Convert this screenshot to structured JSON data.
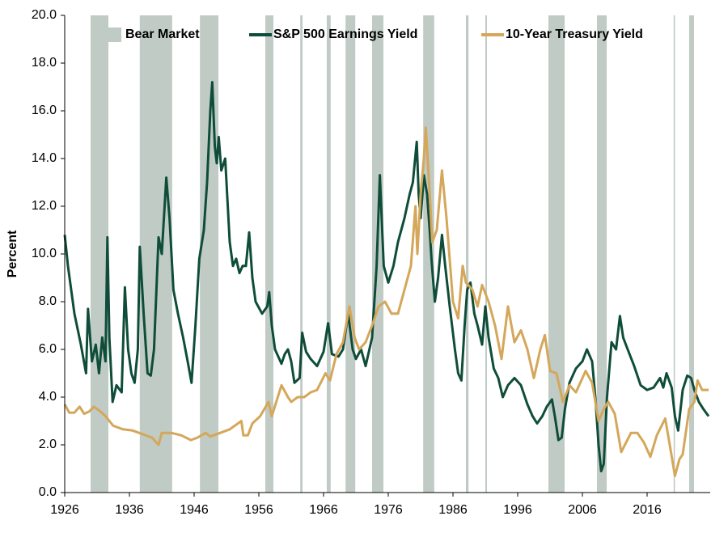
{
  "chart_data": {
    "type": "line",
    "y_label": "Percent",
    "xlim": [
      1926,
      2025.75
    ],
    "xticks": [
      1926,
      1936,
      1946,
      1956,
      1966,
      1976,
      1986,
      1996,
      2006,
      2016
    ],
    "ylim": [
      0,
      20
    ],
    "yticks": [
      {
        "value": 0,
        "label": "0.0"
      },
      {
        "value": 2,
        "label": "2.0"
      },
      {
        "value": 4,
        "label": "4.0"
      },
      {
        "value": 6,
        "label": "6.0"
      },
      {
        "value": 8,
        "label": "8.0"
      },
      {
        "value": 10,
        "label": "10.0"
      },
      {
        "value": 12,
        "label": "12.0"
      },
      {
        "value": 14,
        "label": "14.0"
      },
      {
        "value": 16,
        "label": "16.0"
      },
      {
        "value": 18,
        "label": "18.0"
      },
      {
        "value": 20,
        "label": "20.0"
      }
    ],
    "legend": "top",
    "shaded_periods": {
      "name": "Bear Market",
      "color": "#bfcbc4",
      "ranges": [
        [
          1930.0,
          1932.75
        ],
        [
          1937.6,
          1942.6
        ],
        [
          1946.9,
          1949.75
        ],
        [
          1957.0,
          1958.25
        ],
        [
          1962.4,
          1962.75
        ],
        [
          1966.5,
          1967.1
        ],
        [
          1969.4,
          1970.9
        ],
        [
          1973.5,
          1975.25
        ],
        [
          1981.4,
          1983.1
        ],
        [
          1988.0,
          1988.4
        ],
        [
          1991.0,
          1991.25
        ],
        [
          2000.75,
          2003.25
        ],
        [
          2008.25,
          2009.75
        ],
        [
          2020.1,
          2020.3
        ],
        [
          2022.5,
          2023.25
        ]
      ]
    },
    "series": [
      {
        "name": "S&P 500 Earnings Yield",
        "color": "#0f4d3a",
        "x": [
          1926.0,
          1926.5,
          1927.5,
          1928.5,
          1929.3,
          1929.6,
          1930.2,
          1930.8,
          1931.3,
          1931.8,
          1932.3,
          1932.6,
          1932.9,
          1933.4,
          1934.0,
          1934.8,
          1935.3,
          1935.8,
          1936.3,
          1936.8,
          1937.3,
          1937.6,
          1938.2,
          1938.8,
          1939.3,
          1939.8,
          1940.5,
          1941.0,
          1941.7,
          1942.2,
          1942.8,
          1943.5,
          1944.3,
          1945.0,
          1945.6,
          1946.2,
          1946.8,
          1947.5,
          1948.0,
          1948.5,
          1948.8,
          1949.2,
          1949.5,
          1949.8,
          1950.2,
          1950.8,
          1951.5,
          1952.0,
          1952.5,
          1953.0,
          1953.5,
          1954.0,
          1954.5,
          1955.0,
          1955.5,
          1956.5,
          1957.3,
          1957.6,
          1958.0,
          1958.5,
          1959.0,
          1959.5,
          1960.0,
          1960.5,
          1961.0,
          1961.5,
          1962.3,
          1962.7,
          1963.3,
          1964.0,
          1965.0,
          1966.0,
          1966.7,
          1967.3,
          1968.3,
          1969.0,
          1969.8,
          1970.5,
          1971.0,
          1971.8,
          1972.5,
          1973.5,
          1974.2,
          1974.7,
          1975.3,
          1976.0,
          1976.8,
          1977.5,
          1978.5,
          1979.3,
          1979.8,
          1980.4,
          1980.7,
          1981.0,
          1981.5,
          1982.0,
          1982.4,
          1982.7,
          1983.2,
          1983.7,
          1984.3,
          1984.8,
          1985.5,
          1986.3,
          1986.8,
          1987.3,
          1987.8,
          1988.2,
          1988.7,
          1989.3,
          1989.8,
          1990.5,
          1991.0,
          1991.5,
          1992.3,
          1993.0,
          1993.7,
          1994.5,
          1995.5,
          1996.5,
          1997.5,
          1998.3,
          1999.0,
          1999.8,
          2000.5,
          2001.3,
          2001.8,
          2002.3,
          2002.8,
          2003.3,
          2004.0,
          2005.0,
          2006.0,
          2006.7,
          2007.5,
          2008.0,
          2008.5,
          2008.9,
          2009.3,
          2009.8,
          2010.5,
          2011.2,
          2011.8,
          2012.3,
          2013.0,
          2014.0,
          2015.0,
          2016.0,
          2017.0,
          2018.0,
          2018.5,
          2019.0,
          2019.8,
          2020.3,
          2020.8,
          2021.5,
          2022.2,
          2022.8,
          2023.3,
          2024.0,
          2024.7,
          2025.5
        ],
        "values": [
          10.8,
          9.5,
          7.5,
          6.2,
          5.0,
          7.7,
          5.5,
          6.2,
          5.0,
          6.5,
          5.5,
          10.7,
          6.5,
          3.8,
          4.5,
          4.2,
          8.6,
          6.0,
          5.0,
          4.6,
          6.0,
          10.3,
          7.5,
          5.0,
          4.9,
          6.0,
          10.7,
          10.0,
          13.2,
          11.5,
          8.5,
          7.5,
          6.5,
          5.5,
          4.6,
          7.0,
          9.8,
          11.0,
          13.0,
          16.0,
          17.2,
          14.5,
          13.8,
          14.9,
          13.5,
          14.0,
          10.5,
          9.5,
          9.8,
          9.2,
          9.5,
          9.5,
          10.9,
          9.0,
          8.0,
          7.5,
          7.8,
          8.4,
          7.0,
          6.0,
          5.7,
          5.4,
          5.8,
          6.0,
          5.5,
          4.6,
          4.8,
          6.7,
          5.9,
          5.6,
          5.3,
          5.9,
          7.1,
          5.8,
          5.7,
          6.0,
          7.5,
          6.0,
          5.6,
          6.0,
          5.3,
          6.5,
          9.5,
          13.3,
          9.5,
          8.8,
          9.5,
          10.5,
          11.5,
          12.5,
          13.0,
          14.7,
          12.5,
          11.5,
          13.3,
          12.5,
          11.0,
          9.7,
          8.0,
          9.0,
          10.8,
          9.5,
          7.8,
          6.0,
          5.0,
          4.7,
          7.0,
          8.5,
          8.8,
          7.5,
          7.0,
          6.2,
          7.8,
          6.5,
          5.2,
          4.8,
          4.0,
          4.5,
          4.8,
          4.5,
          3.7,
          3.2,
          2.9,
          3.2,
          3.6,
          3.9,
          3.1,
          2.2,
          2.3,
          3.5,
          4.6,
          5.2,
          5.5,
          6.0,
          5.5,
          4.0,
          2.0,
          0.9,
          1.2,
          4.0,
          6.3,
          6.0,
          7.4,
          6.5,
          6.0,
          5.3,
          4.5,
          4.3,
          4.4,
          4.8,
          4.4,
          5.0,
          4.4,
          3.2,
          2.6,
          4.3,
          4.9,
          4.8,
          4.3,
          3.8,
          3.5,
          3.2
        ]
      },
      {
        "name": "10-Year Treasury Yield",
        "color": "#d4a75a",
        "x": [
          1926.0,
          1926.7,
          1927.5,
          1928.3,
          1929.0,
          1929.8,
          1930.5,
          1931.5,
          1932.3,
          1933.5,
          1935.0,
          1936.5,
          1938.0,
          1939.5,
          1940.5,
          1941.0,
          1942.5,
          1944.0,
          1945.5,
          1946.5,
          1947.8,
          1948.5,
          1950.0,
          1951.5,
          1953.3,
          1953.6,
          1954.3,
          1955.0,
          1956.2,
          1957.5,
          1958.0,
          1959.5,
          1960.5,
          1961.0,
          1962.0,
          1963.0,
          1964.0,
          1965.0,
          1966.3,
          1967.0,
          1968.0,
          1969.0,
          1970.0,
          1970.8,
          1971.5,
          1972.5,
          1973.5,
          1974.5,
          1975.5,
          1976.5,
          1977.5,
          1978.5,
          1979.5,
          1980.2,
          1980.5,
          1981.0,
          1981.5,
          1981.8,
          1982.3,
          1982.8,
          1983.5,
          1984.3,
          1985.0,
          1986.0,
          1986.8,
          1987.5,
          1988.0,
          1989.0,
          1989.8,
          1990.5,
          1991.5,
          1992.5,
          1993.5,
          1994.5,
          1995.5,
          1996.5,
          1997.5,
          1998.5,
          1999.5,
          2000.2,
          2001.0,
          2002.0,
          2003.0,
          2004.0,
          2005.0,
          2006.5,
          2007.5,
          2008.5,
          2009.3,
          2010.0,
          2011.0,
          2012.0,
          2013.5,
          2014.5,
          2015.5,
          2016.5,
          2017.5,
          2018.8,
          2019.5,
          2020.3,
          2021.0,
          2021.5,
          2022.5,
          2023.3,
          2023.8,
          2024.5,
          2025.5
        ],
        "values": [
          3.7,
          3.35,
          3.35,
          3.6,
          3.3,
          3.4,
          3.6,
          3.4,
          3.2,
          2.8,
          2.65,
          2.6,
          2.45,
          2.3,
          2.0,
          2.5,
          2.5,
          2.4,
          2.2,
          2.3,
          2.5,
          2.35,
          2.5,
          2.65,
          3.0,
          2.4,
          2.4,
          2.9,
          3.2,
          3.8,
          3.2,
          4.5,
          4.0,
          3.8,
          4.0,
          4.0,
          4.2,
          4.3,
          5.0,
          4.7,
          5.8,
          6.3,
          7.8,
          6.5,
          6.0,
          6.3,
          7.0,
          7.8,
          8.0,
          7.5,
          7.5,
          8.5,
          9.5,
          12.0,
          10.0,
          12.5,
          14.0,
          15.3,
          13.0,
          10.5,
          11.0,
          13.5,
          11.5,
          8.0,
          7.3,
          9.5,
          8.8,
          8.5,
          7.8,
          8.7,
          8.0,
          7.0,
          5.6,
          7.8,
          6.3,
          6.8,
          6.0,
          4.8,
          6.0,
          6.6,
          5.1,
          5.0,
          3.8,
          4.5,
          4.2,
          5.1,
          4.6,
          3.0,
          3.5,
          3.8,
          3.3,
          1.7,
          2.5,
          2.5,
          2.1,
          1.5,
          2.4,
          3.1,
          2.0,
          0.7,
          1.4,
          1.6,
          3.5,
          3.8,
          4.7,
          4.3,
          4.3
        ]
      }
    ]
  }
}
